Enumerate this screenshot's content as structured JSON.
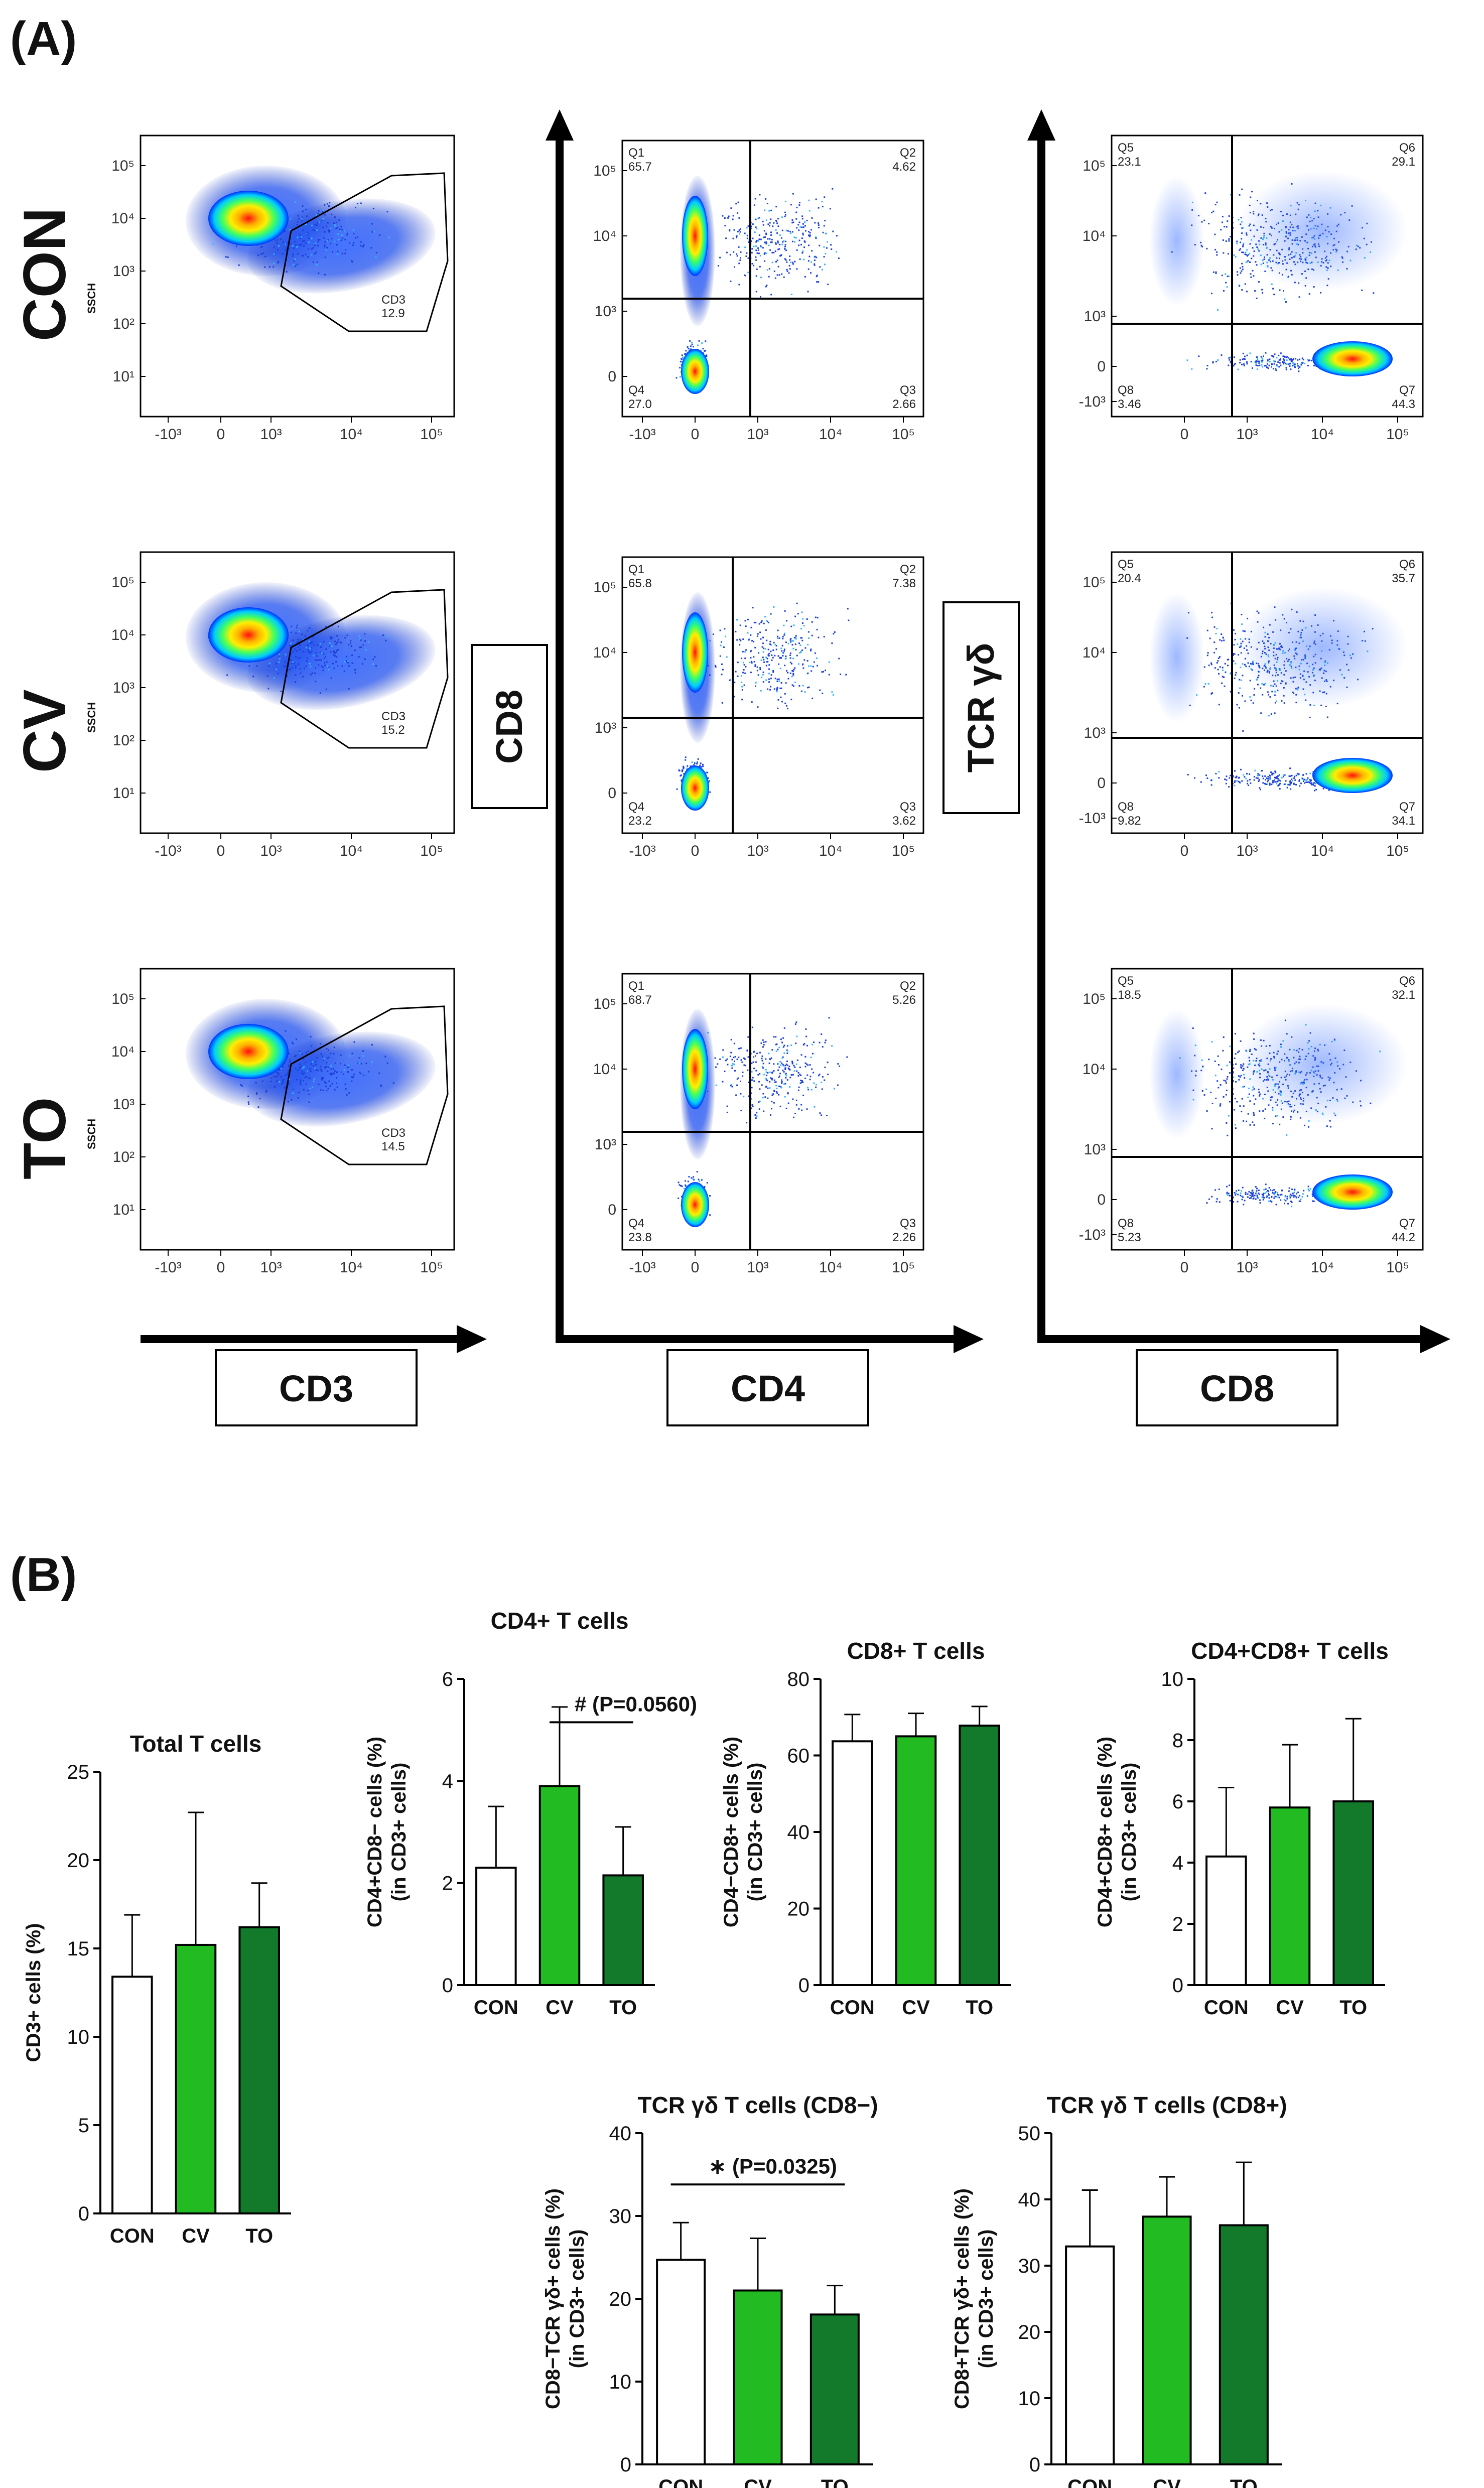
{
  "panel_a": {
    "letter": "(A)",
    "rows": [
      "CON",
      "CV",
      "TO"
    ],
    "ssch_label": "SSCH",
    "axis_labels": {
      "col1_x": "CD3",
      "col2_x": "CD4",
      "col2_y": "CD8",
      "col3_x": "CD8",
      "col3_y": "TCR γδ"
    },
    "tick_labels": {
      "col1_y": [
        "10⁵",
        "10⁴",
        "10³",
        "10²",
        "10¹"
      ],
      "col1_x": [
        "-10³",
        "0",
        "10³",
        "10⁴",
        "10⁵"
      ],
      "col2_y": [
        "10⁵",
        "10⁴",
        "10³",
        "0"
      ],
      "col2_x": [
        "-10³",
        "0",
        "10³",
        "10⁴",
        "10⁵"
      ],
      "col3_y": [
        "10⁵",
        "10⁴",
        "10³",
        "0",
        "-10³"
      ],
      "col3_x": [
        "0",
        "10³",
        "10⁴",
        "10⁵"
      ]
    },
    "gates": [
      {
        "label": "CD3",
        "value": "12.9"
      },
      {
        "label": "CD3",
        "value": "15.2"
      },
      {
        "label": "CD3",
        "value": "14.5"
      }
    ],
    "cd4_cd8_quadrants": [
      {
        "Q1": "65.7",
        "Q2": "4.62",
        "Q3": "2.66",
        "Q4": "27.0"
      },
      {
        "Q1": "65.8",
        "Q2": "7.38",
        "Q3": "3.62",
        "Q4": "23.2"
      },
      {
        "Q1": "68.7",
        "Q2": "5.26",
        "Q3": "2.26",
        "Q4": "23.8"
      }
    ],
    "cd8_tcr_quadrants": [
      {
        "Q5": "23.1",
        "Q6": "29.1",
        "Q7": "44.3",
        "Q8": "3.46"
      },
      {
        "Q5": "20.4",
        "Q6": "35.7",
        "Q7": "34.1",
        "Q8": "9.82"
      },
      {
        "Q5": "18.5",
        "Q6": "32.1",
        "Q7": "44.2",
        "Q8": "5.23"
      }
    ]
  },
  "panel_b": {
    "letter": "(B)"
  },
  "bar_colors": {
    "CON": "#ffffff",
    "CV": "#22bb22",
    "TO": "#127a2a"
  },
  "chart_data": [
    {
      "id": "total",
      "type": "bar",
      "title": "Total T cells",
      "ylabel": [
        "CD3+ cells (%)"
      ],
      "categories": [
        "CON",
        "CV",
        "TO"
      ],
      "values": [
        13.4,
        15.2,
        16.2
      ],
      "errors": [
        3.5,
        7.5,
        2.5
      ],
      "ylim": [
        0,
        25
      ],
      "yticks": [
        0,
        5,
        10,
        15,
        20,
        25
      ],
      "annotation": null
    },
    {
      "id": "cd4",
      "type": "bar",
      "title": "CD4+ T cells",
      "ylabel": [
        "CD4+CD8− cells (%)",
        "(in CD3+ cells)"
      ],
      "categories": [
        "CON",
        "CV",
        "TO"
      ],
      "values": [
        2.3,
        3.9,
        2.15
      ],
      "errors": [
        1.2,
        1.55,
        0.95
      ],
      "ylim": [
        0,
        6
      ],
      "yticks": [
        0,
        2,
        4,
        6
      ],
      "annotation": {
        "text": "# (P=0.0560)",
        "from": 1,
        "to": 2,
        "level": 5.15
      }
    },
    {
      "id": "cd8",
      "type": "bar",
      "title": "CD8+ T cells",
      "ylabel": [
        "CD4−CD8+ cells (%)",
        "(in CD3+ cells)"
      ],
      "categories": [
        "CON",
        "CV",
        "TO"
      ],
      "values": [
        63.7,
        65.0,
        67.8
      ],
      "errors": [
        7.0,
        6.0,
        5.0
      ],
      "ylim": [
        0,
        80
      ],
      "yticks": [
        0,
        20,
        40,
        60,
        80
      ],
      "annotation": null
    },
    {
      "id": "dp",
      "type": "bar",
      "title": "CD4+CD8+ T cells",
      "ylabel": [
        "CD4+CD8+ cells (%)",
        "(in CD3+ cells)"
      ],
      "categories": [
        "CON",
        "CV",
        "TO"
      ],
      "values": [
        4.2,
        5.8,
        6.0
      ],
      "errors": [
        2.25,
        2.05,
        2.7
      ],
      "ylim": [
        0,
        10
      ],
      "yticks": [
        0,
        2,
        4,
        6,
        8,
        10
      ],
      "annotation": null
    },
    {
      "id": "gd_neg",
      "type": "bar",
      "title": "TCR γδ T cells (CD8−)",
      "ylabel": [
        "CD8−TCR γδ+ cells (%)",
        "(in CD3+ cells)"
      ],
      "categories": [
        "CON",
        "CV",
        "TO"
      ],
      "values": [
        24.7,
        21.0,
        18.1
      ],
      "errors": [
        4.5,
        6.3,
        3.5
      ],
      "ylim": [
        0,
        40
      ],
      "yticks": [
        0,
        10,
        20,
        30,
        40
      ],
      "annotation": {
        "text": "∗ (P=0.0325)",
        "from": 0,
        "to": 2,
        "level": 33.8
      }
    },
    {
      "id": "gd_pos",
      "type": "bar",
      "title": "TCR γδ T cells (CD8+)",
      "ylabel": [
        "CD8+TCR γδ+ cells (%)",
        "(in CD3+ cells)"
      ],
      "categories": [
        "CON",
        "CV",
        "TO"
      ],
      "values": [
        32.9,
        37.4,
        36.1
      ],
      "errors": [
        8.5,
        6.0,
        9.5
      ],
      "ylim": [
        0,
        50
      ],
      "yticks": [
        0,
        10,
        20,
        30,
        40,
        50
      ],
      "annotation": null
    }
  ]
}
